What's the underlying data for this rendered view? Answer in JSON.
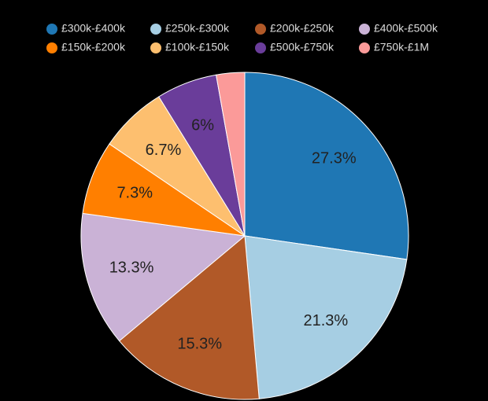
{
  "chart_data": {
    "type": "pie",
    "categories": [
      "£300k-£400k",
      "£250k-£300k",
      "£200k-£250k",
      "£400k-£500k",
      "£150k-£200k",
      "£100k-£150k",
      "£500k-£750k",
      "£750k-£1M"
    ],
    "values": [
      27.3,
      21.3,
      15.3,
      13.3,
      7.3,
      6.7,
      6,
      2.8
    ],
    "value_labels": [
      "27.3%",
      "21.3%",
      "15.3%",
      "13.3%",
      "7.3%",
      "6.7%",
      "6%",
      null
    ],
    "colors": [
      "#1f77b4",
      "#a6cee3",
      "#b15928",
      "#cab2d6",
      "#ff7f00",
      "#fdbf6f",
      "#6a3d9a",
      "#fb9a99"
    ],
    "legend": "top"
  }
}
